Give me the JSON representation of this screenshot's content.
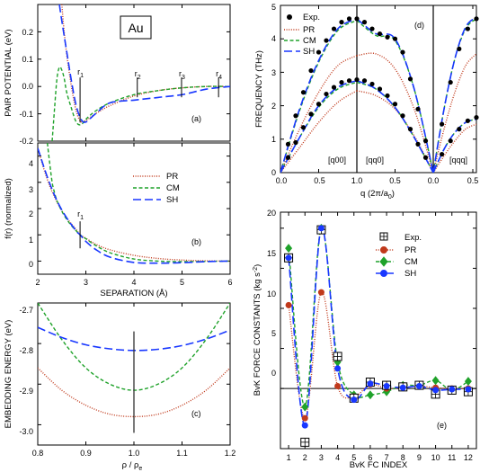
{
  "colors": {
    "PR": "#c0391b",
    "CM": "#1fa22a",
    "SH": "#1837ff",
    "Exp": "#000000",
    "vline": "#333333"
  },
  "chart_data": [
    {
      "id": "a",
      "type": "line",
      "panel_label": "(a)",
      "element_box_text": "Au",
      "ylabel": "PAIR POTENTIAL (eV)",
      "xlim": [
        2,
        6
      ],
      "ylim": [
        -0.2,
        0.3
      ],
      "yticks": [
        "-0.2",
        "-0.1",
        "0.0",
        "0.1",
        "0.2"
      ],
      "markers": [
        {
          "label": "r",
          "sub": "1",
          "x": 2.88
        },
        {
          "label": "r",
          "sub": "2",
          "x": 4.07
        },
        {
          "label": "r",
          "sub": "3",
          "x": 4.99
        },
        {
          "label": "r",
          "sub": "4",
          "x": 5.76
        }
      ],
      "series": [
        {
          "name": "PR",
          "style": "dotted",
          "x": [
            2.5,
            2.55,
            2.6,
            2.7,
            2.8,
            2.9,
            3.0,
            3.2,
            3.5,
            4.0,
            4.5,
            5.0,
            5.5,
            6.0
          ],
          "y": [
            0.3,
            0.2,
            0.12,
            0.0,
            -0.09,
            -0.13,
            -0.125,
            -0.1,
            -0.07,
            -0.035,
            -0.015,
            -0.005,
            0.0,
            0.0
          ]
        },
        {
          "name": "CM",
          "style": "dashed",
          "x": [
            2.3,
            2.35,
            2.4,
            2.45,
            2.5,
            2.55,
            2.6,
            2.7,
            2.8,
            2.9,
            3.0,
            3.2,
            3.5,
            4.0,
            4.5,
            5.0,
            5.5,
            6.0
          ],
          "y": [
            -0.2,
            -0.08,
            0.03,
            0.07,
            0.06,
            0.03,
            -0.02,
            -0.08,
            -0.13,
            -0.14,
            -0.12,
            -0.09,
            -0.06,
            -0.03,
            -0.015,
            -0.005,
            0.0,
            0.0
          ]
        },
        {
          "name": "SH",
          "style": "longdash",
          "x": [
            2.45,
            2.5,
            2.6,
            2.7,
            2.8,
            2.9,
            3.0,
            3.2,
            3.5,
            4.0,
            4.5,
            5.0,
            5.5,
            6.0
          ],
          "y": [
            0.3,
            0.24,
            0.13,
            0.02,
            -0.07,
            -0.12,
            -0.13,
            -0.1,
            -0.06,
            -0.05,
            -0.04,
            -0.03,
            -0.01,
            0.0
          ]
        }
      ]
    },
    {
      "id": "b",
      "type": "line",
      "panel_label": "(b)",
      "ylabel": "f(r) (normalized)",
      "xlabel": "SEPARATION (Å)",
      "xlim": [
        2,
        6
      ],
      "ylim": [
        -0.5,
        4.5
      ],
      "xticks": [
        "2",
        "3",
        "4",
        "5",
        "6"
      ],
      "yticks": [
        "0",
        "1",
        "2",
        "3",
        "4"
      ],
      "markers": [
        {
          "label": "r",
          "sub": "1",
          "x": 2.88
        }
      ],
      "legend": [
        "PR",
        "CM",
        "SH"
      ],
      "series": [
        {
          "name": "PR",
          "style": "dotted",
          "x": [
            2.0,
            2.2,
            2.4,
            2.6,
            2.8,
            2.88,
            3.0,
            3.2,
            3.5,
            4.0,
            4.5,
            5.0,
            5.5,
            6.0
          ],
          "y": [
            4.3,
            3.1,
            2.25,
            1.65,
            1.2,
            1.0,
            0.87,
            0.65,
            0.43,
            0.22,
            0.1,
            0.04,
            0.01,
            0.0
          ]
        },
        {
          "name": "CM",
          "style": "dashed",
          "x": [
            2.2,
            2.25,
            2.3,
            2.35,
            2.4,
            2.5,
            2.6,
            2.7,
            2.8,
            2.88,
            3.0,
            3.2,
            3.5,
            4.0,
            4.5,
            5.0,
            6.0
          ],
          "y": [
            4.5,
            3.7,
            3.0,
            2.6,
            2.3,
            1.9,
            1.6,
            1.35,
            1.15,
            1.0,
            0.85,
            0.6,
            0.32,
            0.08,
            0.0,
            -0.02,
            0.0
          ]
        },
        {
          "name": "SH",
          "style": "longdash",
          "x": [
            2.0,
            2.2,
            2.4,
            2.6,
            2.8,
            2.88,
            3.0,
            3.2,
            3.5,
            4.0,
            4.5,
            5.0,
            5.5,
            6.0
          ],
          "y": [
            4.3,
            3.2,
            2.3,
            1.65,
            1.15,
            1.0,
            0.75,
            0.45,
            0.15,
            -0.05,
            -0.08,
            -0.06,
            -0.02,
            0.0
          ]
        }
      ]
    },
    {
      "id": "c",
      "type": "line",
      "panel_label": "(c)",
      "ylabel": "EMBEDDING ENERGY (eV)",
      "xlabel": "ρ / ρe",
      "xlabel_main": "ρ / ρ",
      "xlabel_sub": "e",
      "xlim": [
        0.8,
        1.2
      ],
      "ylim": [
        -3.05,
        -2.7
      ],
      "xticks": [
        "0.8",
        "0.9",
        "1.0",
        "1.1",
        "1.2"
      ],
      "yticks": [
        "-2.7",
        "-2.8",
        "-2.9",
        "-3.0"
      ],
      "vline": {
        "x": 1.0,
        "y1": -2.77,
        "y2": -3.02
      },
      "series": [
        {
          "name": "PR",
          "style": "dotted",
          "x": [
            0.8,
            0.85,
            0.9,
            0.95,
            1.0,
            1.05,
            1.1,
            1.15,
            1.2
          ],
          "y": [
            -2.86,
            -2.915,
            -2.952,
            -2.974,
            -2.98,
            -2.974,
            -2.952,
            -2.915,
            -2.86
          ]
        },
        {
          "name": "CM",
          "style": "dashed",
          "x": [
            0.8,
            0.85,
            0.9,
            0.95,
            1.0,
            1.05,
            1.1,
            1.15,
            1.2
          ],
          "y": [
            -2.7,
            -2.79,
            -2.86,
            -2.9,
            -2.915,
            -2.9,
            -2.86,
            -2.79,
            -2.7
          ]
        },
        {
          "name": "SH",
          "style": "longdash",
          "x": [
            0.8,
            0.85,
            0.9,
            0.95,
            1.0,
            1.05,
            1.1,
            1.15,
            1.2
          ],
          "y": [
            -2.76,
            -2.785,
            -2.803,
            -2.813,
            -2.817,
            -2.814,
            -2.805,
            -2.789,
            -2.767
          ]
        }
      ]
    },
    {
      "id": "d",
      "type": "line",
      "panel_label": "(d)",
      "ylabel": "FREQUENCY (THz)",
      "xlabel": "q (2π/a0)",
      "xlabel_main": "q (2π/a",
      "xlabel_sub": "0",
      "xlabel_tail": ")",
      "ylim": [
        0,
        5
      ],
      "yticks": [
        "0",
        "1",
        "2",
        "3",
        "4",
        "5"
      ],
      "xticks": [
        "0.0",
        "0.5",
        "1.0",
        "0.5",
        "0.0",
        "0.5"
      ],
      "segments": [
        "[q00]",
        "[qq0]",
        "[qqq]"
      ],
      "legend": [
        "Exp.",
        "PR",
        "CM",
        "SH"
      ],
      "exp_points": [
        {
          "seg": 0,
          "q": [
            0.1,
            0.2,
            0.3,
            0.4,
            0.5,
            0.6,
            0.7,
            0.8,
            0.9,
            1.0
          ],
          "f": [
            0.85,
            1.7,
            2.4,
            3.05,
            3.6,
            3.95,
            4.3,
            4.5,
            4.6,
            4.6
          ]
        },
        {
          "seg": 0,
          "q": [
            0.1,
            0.2,
            0.3,
            0.4,
            0.5,
            0.6,
            0.7,
            0.8,
            0.9,
            1.0
          ],
          "f": [
            0.45,
            0.9,
            1.35,
            1.75,
            2.05,
            2.35,
            2.55,
            2.7,
            2.75,
            2.78
          ]
        },
        {
          "seg": 1,
          "q": [
            0.9,
            0.8,
            0.7,
            0.6,
            0.5,
            0.4,
            0.3,
            0.2,
            0.1
          ],
          "f": [
            4.5,
            4.3,
            4.15,
            4.05,
            4.0,
            3.6,
            2.8,
            1.9,
            0.95
          ]
        },
        {
          "seg": 1,
          "q": [
            0.9,
            0.8,
            0.7,
            0.6,
            0.5,
            0.4,
            0.3,
            0.2,
            0.1
          ],
          "f": [
            2.75,
            2.65,
            2.5,
            2.3,
            2.05,
            1.7,
            1.3,
            0.85,
            0.45
          ]
        },
        {
          "seg": 2,
          "q": [
            0.1,
            0.2,
            0.3,
            0.4,
            0.5
          ],
          "f": [
            1.45,
            2.7,
            3.7,
            4.3,
            4.6
          ]
        },
        {
          "seg": 2,
          "q": [
            0.1,
            0.2,
            0.3,
            0.4,
            0.5
          ],
          "f": [
            0.55,
            0.95,
            1.3,
            1.55,
            1.65
          ]
        }
      ],
      "series": [
        {
          "name": "PR",
          "style": "dotted",
          "branches": [
            {
              "seg": 0,
              "q": [
                0,
                0.25,
                0.5,
                0.75,
                1.0
              ],
              "f": [
                0,
                1.3,
                2.4,
                3.2,
                3.5
              ]
            },
            {
              "seg": 0,
              "q": [
                0,
                0.25,
                0.5,
                0.75,
                1.0
              ],
              "f": [
                0,
                0.75,
                1.5,
                2.1,
                2.45
              ]
            },
            {
              "seg": 1,
              "q": [
                1.0,
                0.75,
                0.5,
                0.25,
                0.0
              ],
              "f": [
                3.5,
                3.55,
                3.1,
                1.9,
                0
              ]
            },
            {
              "seg": 1,
              "q": [
                1.0,
                0.75,
                0.5,
                0.25,
                0.0
              ],
              "f": [
                2.45,
                2.3,
                1.9,
                1.1,
                0
              ]
            },
            {
              "seg": 2,
              "q": [
                0,
                0.125,
                0.25,
                0.375,
                0.5
              ],
              "f": [
                0,
                1.3,
                2.4,
                3.2,
                3.55
              ]
            },
            {
              "seg": 2,
              "q": [
                0,
                0.125,
                0.25,
                0.375,
                0.5
              ],
              "f": [
                0,
                0.5,
                0.95,
                1.3,
                1.45
              ]
            }
          ]
        },
        {
          "name": "CM",
          "style": "dashed",
          "branches": [
            {
              "seg": 0,
              "q": [
                0,
                0.25,
                0.5,
                0.75,
                1.0
              ],
              "f": [
                0,
                1.85,
                3.3,
                4.25,
                4.55
              ]
            },
            {
              "seg": 0,
              "q": [
                0,
                0.25,
                0.5,
                0.75,
                1.0
              ],
              "f": [
                0,
                1.05,
                1.95,
                2.5,
                2.7
              ]
            },
            {
              "seg": 1,
              "q": [
                1.0,
                0.75,
                0.5,
                0.25,
                0.0
              ],
              "f": [
                4.55,
                4.1,
                3.95,
                2.5,
                0
              ]
            },
            {
              "seg": 1,
              "q": [
                1.0,
                0.75,
                0.5,
                0.25,
                0.0
              ],
              "f": [
                2.7,
                2.5,
                1.95,
                1.05,
                0
              ]
            },
            {
              "seg": 2,
              "q": [
                0,
                0.125,
                0.25,
                0.375,
                0.5
              ],
              "f": [
                0,
                1.9,
                3.4,
                4.3,
                4.6
              ]
            },
            {
              "seg": 2,
              "q": [
                0,
                0.125,
                0.25,
                0.375,
                0.5
              ],
              "f": [
                0,
                0.7,
                1.2,
                1.5,
                1.6
              ]
            }
          ]
        },
        {
          "name": "SH",
          "style": "longdash",
          "branches": [
            {
              "seg": 0,
              "q": [
                0,
                0.25,
                0.5,
                0.75,
                1.0
              ],
              "f": [
                0,
                1.9,
                3.35,
                4.3,
                4.6
              ]
            },
            {
              "seg": 0,
              "q": [
                0,
                0.25,
                0.5,
                0.75,
                1.0
              ],
              "f": [
                0,
                1.05,
                2.0,
                2.55,
                2.75
              ]
            },
            {
              "seg": 1,
              "q": [
                1.0,
                0.75,
                0.5,
                0.25,
                0.0
              ],
              "f": [
                4.6,
                4.15,
                4.0,
                2.5,
                0
              ]
            },
            {
              "seg": 1,
              "q": [
                1.0,
                0.75,
                0.5,
                0.25,
                0.0
              ],
              "f": [
                2.75,
                2.5,
                1.95,
                1.05,
                0
              ]
            },
            {
              "seg": 2,
              "q": [
                0,
                0.125,
                0.25,
                0.375,
                0.5
              ],
              "f": [
                0,
                1.9,
                3.4,
                4.35,
                4.65
              ]
            },
            {
              "seg": 2,
              "q": [
                0,
                0.125,
                0.25,
                0.375,
                0.5
              ],
              "f": [
                0,
                0.7,
                1.2,
                1.5,
                1.6
              ]
            }
          ]
        }
      ]
    },
    {
      "id": "e",
      "type": "line",
      "panel_label": "(e)",
      "ylabel": "BvK FORCE CONSTANTS (kg s",
      "ylabel_sup": "-2",
      "ylabel_tail": ")",
      "xlabel": "BvK FC INDEX",
      "xlim": [
        0.5,
        12.5
      ],
      "ylim": [
        -7.5,
        22
      ],
      "xticks": [
        "1",
        "2",
        "3",
        "4",
        "5",
        "6",
        "7",
        "8",
        "9",
        "10",
        "11",
        "12"
      ],
      "yticks": [
        "0",
        "5",
        "10",
        "15",
        "20"
      ],
      "legend": [
        "Exp.",
        "PR",
        "CM",
        "SH"
      ],
      "categories": [
        1,
        2,
        3,
        4,
        5,
        6,
        7,
        8,
        9,
        10,
        11,
        12
      ],
      "series": [
        {
          "name": "Exp.",
          "values": [
            16.3,
            -6.7,
            19.8,
            4.0,
            -1.2,
            0.8,
            0.4,
            0.2,
            0.4,
            -0.7,
            -0.2,
            -0.4
          ]
        },
        {
          "name": "PR",
          "values": [
            10.4,
            -3.7,
            12.0,
            0.3,
            -1.0,
            0.5,
            0.0,
            0.1,
            0.3,
            0.1,
            0.0,
            0.0
          ]
        },
        {
          "name": "CM",
          "values": [
            17.5,
            -2.3,
            20.0,
            3.3,
            -0.8,
            -0.8,
            -0.4,
            0.4,
            0.4,
            1.0,
            -0.2,
            0.9
          ]
        },
        {
          "name": "SH",
          "values": [
            16.3,
            -4.6,
            20.0,
            2.5,
            -1.4,
            0.6,
            0.3,
            0.1,
            0.3,
            -0.2,
            -0.1,
            -0.1
          ]
        }
      ]
    }
  ]
}
